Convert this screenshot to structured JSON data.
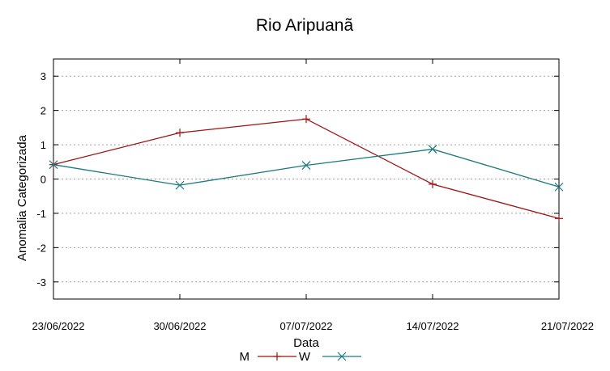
{
  "chart_data": {
    "type": "line",
    "title": "Rio Aripuanã",
    "xlabel": "Data",
    "ylabel": "Anomalia Categorizada",
    "categories": [
      "23/06/2022",
      "30/06/2022",
      "07/07/2022",
      "14/07/2022",
      "21/07/2022"
    ],
    "ylim": [
      -3.5,
      3.5
    ],
    "yticks": [
      3,
      2,
      1,
      0,
      -1,
      -2,
      -3
    ],
    "ytick_labels": [
      "3",
      "2",
      "1",
      "0",
      "-1",
      "-2",
      "-3"
    ],
    "grid": "horizontal-dashed",
    "legend_placement": "bottom-center",
    "series": [
      {
        "name": "M",
        "color": "#a01010",
        "marker": "plus",
        "values": [
          0.42,
          1.35,
          1.75,
          -0.15,
          -1.15
        ]
      },
      {
        "name": "W",
        "color": "#1a7a80",
        "marker": "cross",
        "values": [
          0.42,
          -0.18,
          0.4,
          0.87,
          -0.23
        ]
      }
    ]
  }
}
